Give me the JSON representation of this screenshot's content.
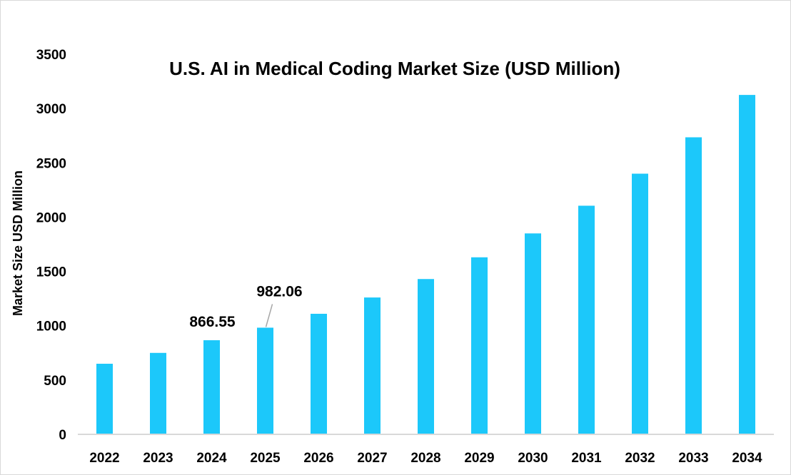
{
  "chart_data": {
    "type": "bar",
    "title": "U.S. AI in Medical Coding Market Size (USD Million)",
    "xlabel": "",
    "ylabel": "Market Size USD Million",
    "ylim": [
      0,
      3500
    ],
    "yticks": [
      0,
      500,
      1000,
      1500,
      2000,
      2500,
      3000,
      3500
    ],
    "grid": false,
    "legend": "none",
    "bar_color": "#1CC8FA",
    "categories": [
      "2022",
      "2023",
      "2024",
      "2025",
      "2026",
      "2027",
      "2028",
      "2029",
      "2030",
      "2031",
      "2032",
      "2033",
      "2034"
    ],
    "values": [
      650,
      750,
      866.55,
      982.06,
      1110,
      1260,
      1430,
      1630,
      1850,
      2105,
      2400,
      2735,
      3125
    ],
    "data_labels": [
      {
        "category": "2024",
        "text": "866.55"
      },
      {
        "category": "2025",
        "text": "982.06"
      }
    ]
  }
}
